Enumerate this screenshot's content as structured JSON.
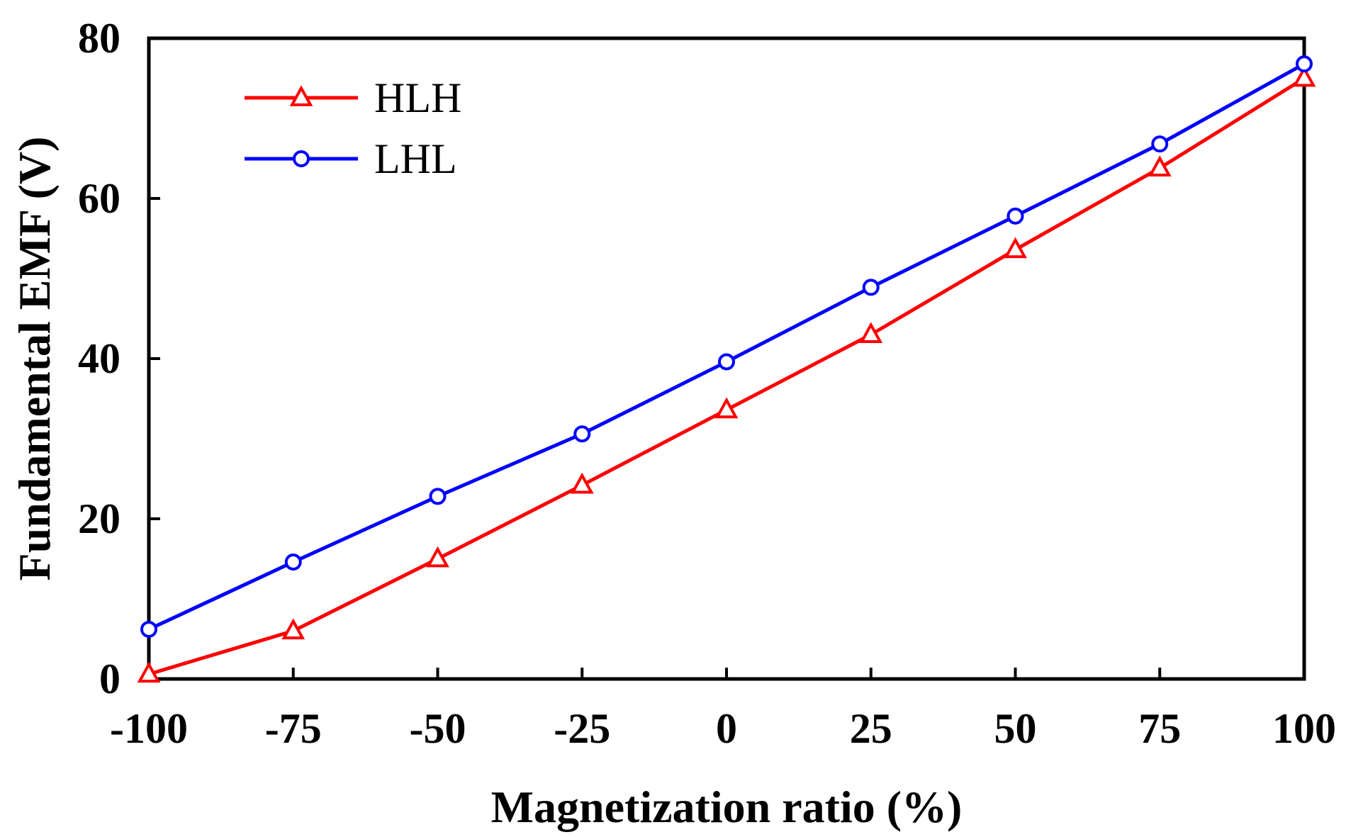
{
  "chart_data": {
    "type": "line",
    "title": "",
    "xlabel": "Magnetization ratio (%)",
    "ylabel": "Fundamental EMF (V)",
    "x": [
      -100,
      -75,
      -50,
      -25,
      0,
      25,
      50,
      75,
      100
    ],
    "xticks": [
      "-100",
      "-75",
      "-50",
      "-25",
      "0",
      "25",
      "50",
      "75",
      "100"
    ],
    "yticks": [
      "0",
      "20",
      "40",
      "60",
      "80"
    ],
    "xlim": [
      -100,
      100
    ],
    "ylim": [
      0,
      80
    ],
    "grid": false,
    "legend_position": "top-left",
    "series": [
      {
        "name": "HLH",
        "color": "#ff0000",
        "marker": "triangle",
        "values": [
          0.6,
          6.0,
          15.0,
          24.2,
          33.6,
          43.0,
          53.6,
          63.8,
          75.0
        ]
      },
      {
        "name": "LHL",
        "color": "#0000ff",
        "marker": "circle",
        "values": [
          6.2,
          14.6,
          22.8,
          30.6,
          39.6,
          48.9,
          57.8,
          66.8,
          76.8
        ]
      }
    ]
  }
}
